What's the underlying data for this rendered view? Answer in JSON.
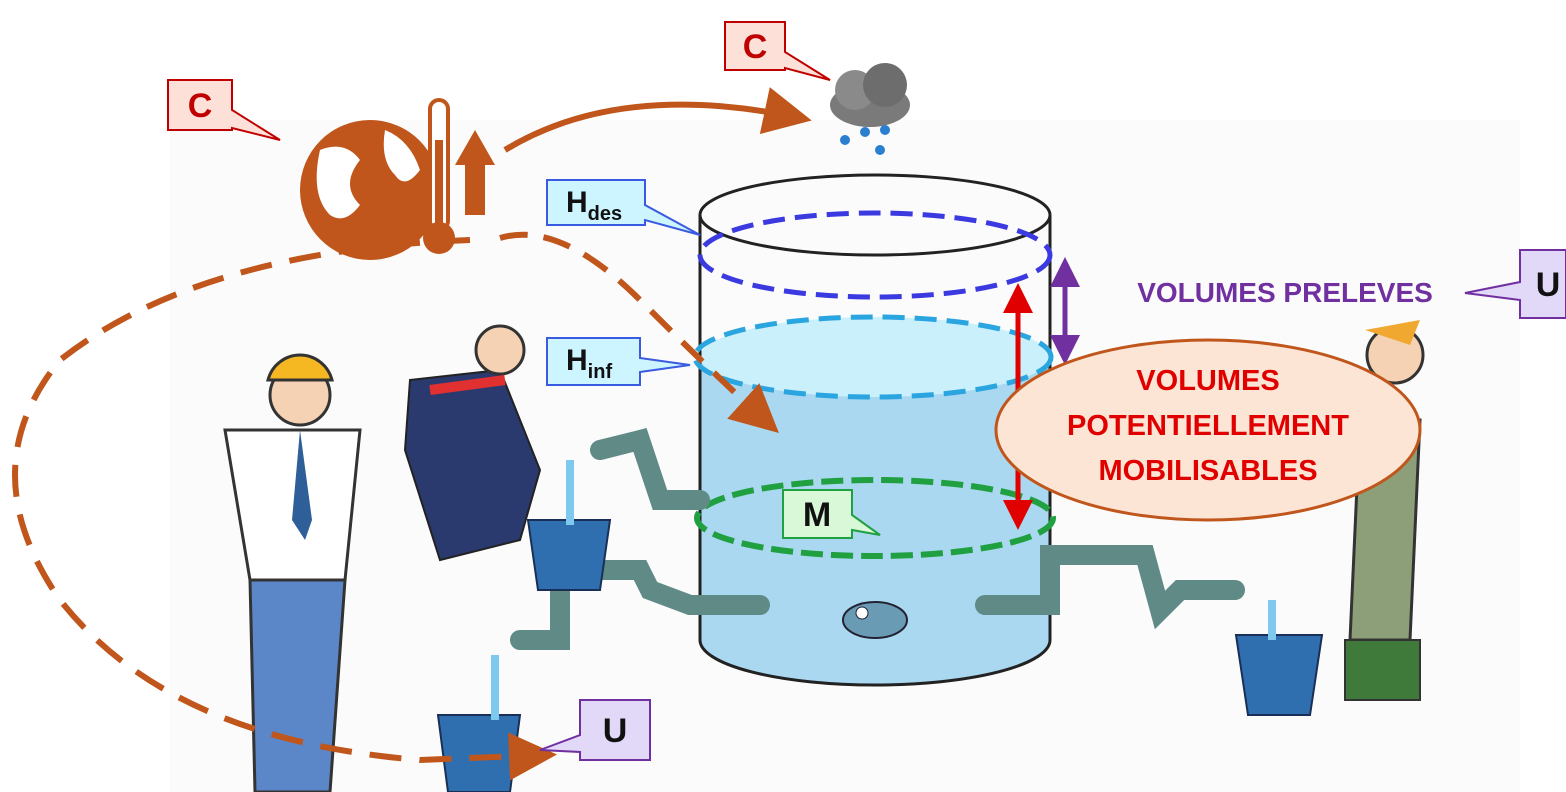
{
  "callouts": [
    {
      "label": "C"
    },
    {
      "label": "C"
    },
    {
      "label": "H",
      "subscript": "des"
    },
    {
      "label": "H",
      "subscript": "inf"
    },
    {
      "label": "M"
    },
    {
      "label": "U"
    },
    {
      "label": "U"
    }
  ],
  "volumes_preleves": "VOLUMES PRELEVES",
  "volumes_mobilisables": [
    "VOLUMES",
    "POTENTIELLEMENT",
    "MOBILISABLES"
  ]
}
